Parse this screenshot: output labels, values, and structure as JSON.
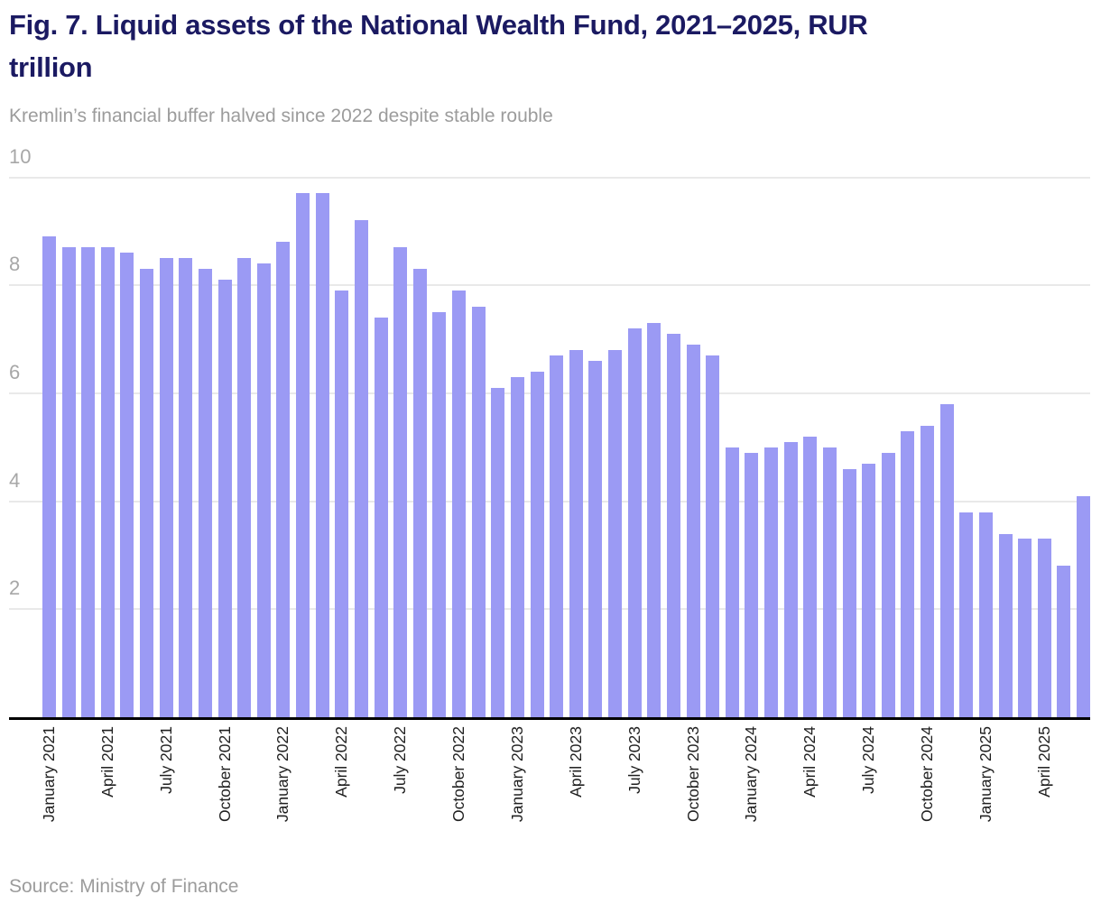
{
  "header": {
    "title": "Fig. 7. Liquid assets of the National Wealth Fund, 2021–2025, RUR trillion",
    "title_line1": "Fig. 7. Liquid assets of the National Wealth Fund, 2021–2025, RUR",
    "title_line2": "trillion",
    "subtitle": "Kremlin’s financial buffer halved since 2022 despite stable rouble"
  },
  "footer": {
    "source": "Source: Ministry of Finance"
  },
  "colors": {
    "bar": "#9b9af4",
    "title": "#1b1a62",
    "subtitle": "#9c9c9c",
    "y_tick_label": "#a7a7a7",
    "x_tick_label": "#1f1f1f",
    "gridline": "#e9e9e9",
    "axis_line": "#000000",
    "background": "#ffffff"
  },
  "chart_data": {
    "type": "bar",
    "title": "Fig. 7. Liquid assets of the National Wealth Fund, 2021–2025, RUR trillion",
    "subtitle": "Kremlin’s financial buffer halved since 2022 despite stable rouble",
    "source": "Source: Ministry of Finance",
    "xlabel": "",
    "ylabel": "",
    "ylim": [
      0,
      10
    ],
    "yticks": [
      2,
      4,
      6,
      8,
      10
    ],
    "grid": "horizontal",
    "legend": "none",
    "bar_color": "#9b9af4",
    "x_tick_interval": 3,
    "categories": [
      "January 2021",
      "February 2021",
      "March 2021",
      "April 2021",
      "May 2021",
      "June 2021",
      "July 2021",
      "August 2021",
      "September 2021",
      "October 2021",
      "November 2021",
      "December 2021",
      "January 2022",
      "February 2022",
      "March 2022",
      "April 2022",
      "May 2022",
      "June 2022",
      "July 2022",
      "August 2022",
      "September 2022",
      "October 2022",
      "November 2022",
      "December 2022",
      "January 2023",
      "February 2023",
      "March 2023",
      "April 2023",
      "May 2023",
      "June 2023",
      "July 2023",
      "August 2023",
      "September 2023",
      "October 2023",
      "November 2023",
      "December 2023",
      "January 2024",
      "February 2024",
      "March 2024",
      "April 2024",
      "May 2024",
      "June 2024",
      "July 2024",
      "August 2024",
      "September 2024",
      "October 2024",
      "November 2024",
      "December 2024",
      "January 2025",
      "February 2025",
      "March 2025",
      "April 2025",
      "May 2025",
      "June 2025"
    ],
    "values": [
      8.9,
      8.7,
      8.7,
      8.7,
      8.6,
      8.3,
      8.5,
      8.5,
      8.3,
      8.1,
      8.5,
      8.4,
      8.8,
      9.7,
      9.7,
      7.9,
      9.2,
      7.4,
      8.7,
      8.3,
      7.5,
      7.9,
      7.6,
      6.1,
      6.3,
      6.4,
      6.7,
      6.8,
      6.6,
      6.8,
      7.2,
      7.3,
      7.1,
      6.9,
      6.7,
      5.0,
      4.9,
      5.0,
      5.1,
      5.2,
      5.0,
      4.6,
      4.7,
      4.9,
      5.3,
      5.4,
      5.8,
      3.8,
      3.8,
      3.4,
      3.3,
      3.3,
      2.8,
      4.1
    ]
  }
}
